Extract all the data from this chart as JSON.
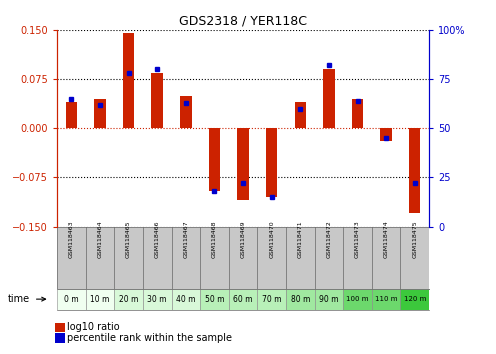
{
  "title": "GDS2318 / YER118C",
  "samples": [
    "GSM118463",
    "GSM118464",
    "GSM118465",
    "GSM118466",
    "GSM118467",
    "GSM118468",
    "GSM118469",
    "GSM118470",
    "GSM118471",
    "GSM118472",
    "GSM118473",
    "GSM118474",
    "GSM118475"
  ],
  "time_labels": [
    "0 m",
    "10 m",
    "20 m",
    "30 m",
    "40 m",
    "50 m",
    "60 m",
    "70 m",
    "80 m",
    "90 m",
    "100 m",
    "110 m",
    "120 m"
  ],
  "log10_ratio": [
    0.04,
    0.045,
    0.145,
    0.085,
    0.05,
    -0.095,
    -0.11,
    -0.105,
    0.04,
    0.09,
    0.045,
    -0.02,
    -0.13
  ],
  "percentile_rank": [
    65,
    62,
    78,
    80,
    63,
    18,
    22,
    15,
    60,
    82,
    64,
    45,
    22
  ],
  "ylim": [
    -0.15,
    0.15
  ],
  "yticks_left": [
    -0.15,
    -0.075,
    0,
    0.075,
    0.15
  ],
  "yticks_right": [
    0,
    25,
    50,
    75,
    100
  ],
  "bar_color": "#cc2200",
  "dot_color": "#0000cc",
  "zero_line_color": "#cc2200",
  "sample_bg": "#c8c8c8",
  "time_row_colors": [
    "#f0fff0",
    "#f0fff0",
    "#d8f8d8",
    "#d8f8d8",
    "#d8f8d8",
    "#b8f0b8",
    "#b8f0b8",
    "#b8f0b8",
    "#a0e8a0",
    "#a0e8a0",
    "#6cd86c",
    "#6cd86c",
    "#3cc83c"
  ]
}
